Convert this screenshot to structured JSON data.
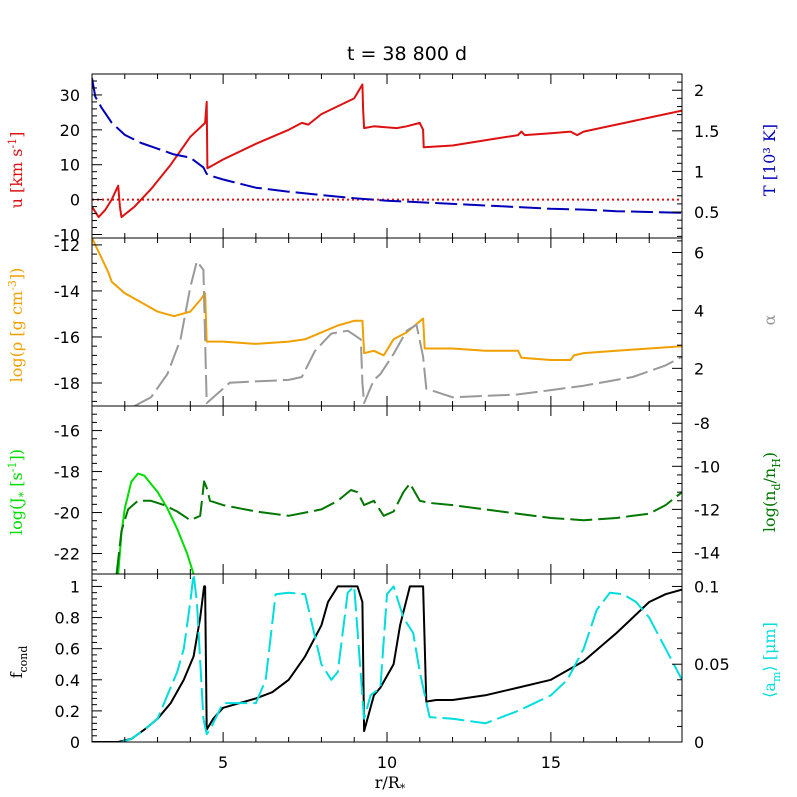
{
  "chart_data": {
    "type": "line",
    "title": "t  =  38 800  d",
    "xlabel": "r/R*",
    "xlim": [
      1,
      19
    ],
    "xticks": [
      5,
      10,
      15
    ],
    "panels": [
      {
        "id": "velocity-temperature",
        "left_axis": {
          "label": "u [km s-1]",
          "color": "#dd1111",
          "ylim": [
            -11,
            36
          ],
          "ticks": [
            -10,
            0,
            10,
            20,
            30
          ]
        },
        "right_axis": {
          "label": "T [10³ K]",
          "color": "#0000bb",
          "ylim": [
            0.18,
            2.2
          ],
          "ticks": [
            0.5,
            1,
            1.5,
            2
          ]
        },
        "series": [
          {
            "name": "u",
            "axis": "left",
            "color": "#dd1111",
            "style": "solid",
            "x": [
              1.0,
              1.2,
              1.4,
              1.6,
              1.8,
              1.85,
              1.9,
              2.3,
              2.8,
              3.4,
              4.0,
              4.45,
              4.5,
              4.52,
              5.0,
              6.0,
              7.0,
              7.4,
              7.6,
              8.0,
              9.0,
              9.25,
              9.27,
              9.3,
              9.6,
              10.3,
              10.6,
              11.0,
              11.1,
              11.12,
              12.0,
              13.0,
              14.0,
              14.1,
              14.2,
              15.0,
              15.6,
              15.8,
              16.0,
              17.0,
              18.0,
              19.0
            ],
            "y": [
              -2,
              -5,
              -3,
              0,
              4,
              -2,
              -5,
              -2,
              3,
              10,
              18,
              22,
              28,
              9,
              11.5,
              16,
              20,
              22,
              21.5,
              24.5,
              29,
              33,
              26,
              20.5,
              21,
              20.5,
              21,
              22,
              20,
              15,
              15.5,
              17,
              18.5,
              19.5,
              18.5,
              19,
              19.5,
              18.5,
              19.5,
              21.5,
              23.5,
              25.5
            ]
          },
          {
            "name": "u=0",
            "axis": "left",
            "color": "#dd1111",
            "style": "dotted",
            "x": [
              1,
              19
            ],
            "y": [
              0,
              0
            ]
          },
          {
            "name": "T",
            "axis": "right",
            "color": "#0000bb",
            "style": "dashed",
            "x": [
              1.0,
              1.1,
              1.3,
              1.6,
              2.0,
              2.5,
              3.0,
              3.5,
              4.0,
              4.4,
              4.5,
              4.6,
              5.0,
              5.5,
              6.0,
              7.0,
              8.0,
              9.0,
              10.0,
              11.0,
              12.0,
              13.0,
              14.0,
              15.0,
              16.0,
              17.0,
              18.0,
              19.0
            ],
            "y": [
              2.15,
              1.92,
              1.78,
              1.6,
              1.45,
              1.35,
              1.28,
              1.21,
              1.17,
              1.05,
              0.97,
              0.95,
              0.9,
              0.85,
              0.8,
              0.75,
              0.71,
              0.67,
              0.64,
              0.62,
              0.6,
              0.58,
              0.56,
              0.54,
              0.53,
              0.51,
              0.5,
              0.49
            ]
          }
        ]
      },
      {
        "id": "density-alpha",
        "left_axis": {
          "label": "log(ρ [g cm-3])",
          "color": "#f0a000",
          "ylim": [
            -19.0,
            -11.7
          ],
          "ticks": [
            -18,
            -16,
            -14,
            -12
          ]
        },
        "right_axis": {
          "label": "α",
          "color": "#999999",
          "ylim": [
            0.7,
            6.5
          ],
          "ticks": [
            2,
            4,
            6
          ]
        },
        "series": [
          {
            "name": "log rho",
            "axis": "left",
            "color": "#f0a000",
            "style": "solid",
            "x": [
              1.0,
              1.2,
              1.5,
              1.6,
              2.0,
              2.5,
              3.0,
              3.5,
              4.0,
              4.3,
              4.45,
              4.5,
              5.0,
              6.0,
              7.0,
              7.5,
              8.0,
              8.5,
              9.0,
              9.25,
              9.3,
              9.6,
              9.9,
              10.2,
              10.6,
              11.1,
              11.15,
              12.0,
              13.0,
              14.0,
              14.1,
              15.0,
              15.6,
              15.7,
              16.0,
              17.0,
              18.0,
              19.0
            ],
            "y": [
              -11.7,
              -12.3,
              -13.2,
              -13.6,
              -14.1,
              -14.5,
              -14.9,
              -15.1,
              -14.9,
              -14.4,
              -14.1,
              -16.2,
              -16.2,
              -16.3,
              -16.2,
              -16.1,
              -15.8,
              -15.5,
              -15.3,
              -15.3,
              -16.7,
              -16.6,
              -16.8,
              -16.1,
              -15.8,
              -15.2,
              -16.5,
              -16.5,
              -16.6,
              -16.6,
              -16.9,
              -17.0,
              -17.0,
              -16.8,
              -16.7,
              -16.6,
              -16.5,
              -16.4
            ]
          },
          {
            "name": "alpha",
            "axis": "right",
            "color": "#999999",
            "style": "dashed",
            "x": [
              2.3,
              2.8,
              3.3,
              3.7,
              4.0,
              4.2,
              4.4,
              4.45,
              4.5,
              5.2,
              6.0,
              7.0,
              7.4,
              7.8,
              8.3,
              8.8,
              9.2,
              9.25,
              9.3,
              9.6,
              9.8,
              10.2,
              10.6,
              10.9,
              11.1,
              11.2,
              12.0,
              13.0,
              14.0,
              15.0,
              16.0,
              17.0,
              17.5,
              18.5,
              19.0
            ],
            "y": [
              0.7,
              1.0,
              1.8,
              3.0,
              4.8,
              5.7,
              5.4,
              3.0,
              0.8,
              1.5,
              1.55,
              1.6,
              1.7,
              2.6,
              3.2,
              3.3,
              3.0,
              1.5,
              0.8,
              1.6,
              1.8,
              2.5,
              3.3,
              3.5,
              2.4,
              1.3,
              1.0,
              1.05,
              1.1,
              1.25,
              1.4,
              1.6,
              1.7,
              2.1,
              2.4
            ]
          }
        ]
      },
      {
        "id": "nucleation-dust",
        "left_axis": {
          "label": "log(J* [s-1])",
          "color": "#00dd00",
          "ylim": [
            -23.0,
            -14.8
          ],
          "ticks": [
            -22,
            -20,
            -18,
            -16
          ]
        },
        "right_axis": {
          "label": "log(nd/nH)",
          "color": "#007700",
          "ylim": [
            -15.0,
            -7.2
          ],
          "ticks": [
            -14,
            -12,
            -10,
            -8
          ]
        },
        "series": [
          {
            "name": "log J",
            "axis": "left",
            "color": "#00dd00",
            "style": "solid",
            "x": [
              1.8,
              1.9,
              2.0,
              2.2,
              2.4,
              2.6,
              2.8,
              3.0,
              3.3,
              3.6,
              3.9,
              4.1
            ],
            "y": [
              -23.0,
              -21.0,
              -19.8,
              -18.5,
              -18.1,
              -18.2,
              -18.6,
              -19.0,
              -19.8,
              -20.8,
              -22.0,
              -23.0
            ]
          },
          {
            "name": "log nd/nH",
            "axis": "right",
            "color": "#007700",
            "style": "dashed",
            "x": [
              1.75,
              1.9,
              2.1,
              2.4,
              2.8,
              3.2,
              3.6,
              4.0,
              4.3,
              4.42,
              4.5,
              4.6,
              5.0,
              6.0,
              7.0,
              8.0,
              8.5,
              8.9,
              9.1,
              9.3,
              9.6,
              9.9,
              10.2,
              10.5,
              10.7,
              11.0,
              11.3,
              12.0,
              13.0,
              14.0,
              15.0,
              16.0,
              17.0,
              17.5,
              18.0,
              18.5,
              19.0
            ],
            "y": [
              -15.0,
              -13.0,
              -12.0,
              -11.6,
              -11.6,
              -11.8,
              -12.1,
              -12.5,
              -12.3,
              -10.7,
              -11.0,
              -11.6,
              -11.8,
              -12.1,
              -12.3,
              -12.0,
              -11.6,
              -11.1,
              -11.2,
              -11.8,
              -11.6,
              -12.3,
              -12.1,
              -11.2,
              -10.8,
              -11.6,
              -11.7,
              -11.8,
              -12.0,
              -12.2,
              -12.4,
              -12.5,
              -12.4,
              -12.3,
              -12.2,
              -11.8,
              -11.2
            ]
          }
        ]
      },
      {
        "id": "condensation-grainsize",
        "left_axis": {
          "label": "fcond",
          "color": "#000000",
          "ylim": [
            0,
            1.08
          ],
          "ticks": [
            0,
            0.2,
            0.4,
            0.6,
            0.8,
            1
          ]
        },
        "right_axis": {
          "label": "⟨am⟩ [μm]",
          "color": "#00dddd",
          "ylim": [
            0,
            0.108
          ],
          "ticks": [
            0,
            0.05,
            0.1
          ]
        },
        "series": [
          {
            "name": "fcond",
            "axis": "left",
            "color": "#000000",
            "style": "solid",
            "x": [
              1.0,
              1.8,
              2.2,
              2.6,
              3.0,
              3.4,
              3.8,
              4.1,
              4.3,
              4.42,
              4.45,
              4.5,
              4.7,
              5.0,
              6.0,
              6.5,
              7.0,
              7.5,
              8.0,
              8.2,
              8.5,
              9.0,
              9.1,
              9.25,
              9.3,
              9.6,
              9.8,
              10.2,
              10.4,
              10.7,
              11.0,
              11.1,
              11.2,
              11.5,
              12.0,
              13.0,
              14.0,
              15.0,
              16.0,
              17.0,
              17.5,
              18.0,
              18.5,
              19.0
            ],
            "y": [
              0,
              0,
              0.02,
              0.08,
              0.15,
              0.25,
              0.4,
              0.55,
              0.8,
              1.0,
              1.0,
              0.08,
              0.15,
              0.22,
              0.28,
              0.32,
              0.4,
              0.55,
              0.75,
              0.9,
              1.0,
              1.0,
              1.0,
              0.9,
              0.07,
              0.3,
              0.35,
              0.5,
              0.75,
              1.0,
              1.0,
              1.0,
              0.26,
              0.27,
              0.27,
              0.3,
              0.35,
              0.4,
              0.52,
              0.7,
              0.8,
              0.9,
              0.95,
              0.98
            ]
          },
          {
            "name": "am",
            "axis": "right",
            "color": "#00dddd",
            "style": "dashed",
            "x": [
              1.9,
              2.2,
              2.6,
              3.0,
              3.3,
              3.6,
              3.8,
              4.0,
              4.1,
              4.2,
              4.4,
              4.5,
              4.6,
              5.0,
              6.0,
              6.3,
              6.6,
              7.0,
              7.5,
              8.0,
              8.3,
              8.5,
              8.8,
              9.0,
              9.3,
              9.5,
              9.8,
              10.0,
              10.2,
              10.5,
              10.8,
              11.0,
              11.3,
              12.0,
              13.0,
              14.0,
              15.0,
              15.5,
              16.0,
              16.4,
              16.8,
              17.2,
              17.6,
              18.0,
              18.5,
              19.0
            ],
            "y": [
              0,
              0.002,
              0.008,
              0.015,
              0.03,
              0.045,
              0.06,
              0.09,
              0.108,
              0.09,
              0.015,
              0.005,
              0.008,
              0.025,
              0.025,
              0.04,
              0.095,
              0.096,
              0.095,
              0.05,
              0.04,
              0.045,
              0.096,
              0.1,
              0.015,
              0.03,
              0.035,
              0.095,
              0.1,
              0.08,
              0.07,
              0.045,
              0.016,
              0.015,
              0.012,
              0.02,
              0.03,
              0.04,
              0.06,
              0.085,
              0.096,
              0.095,
              0.09,
              0.08,
              0.06,
              0.04
            ]
          }
        ]
      }
    ]
  }
}
